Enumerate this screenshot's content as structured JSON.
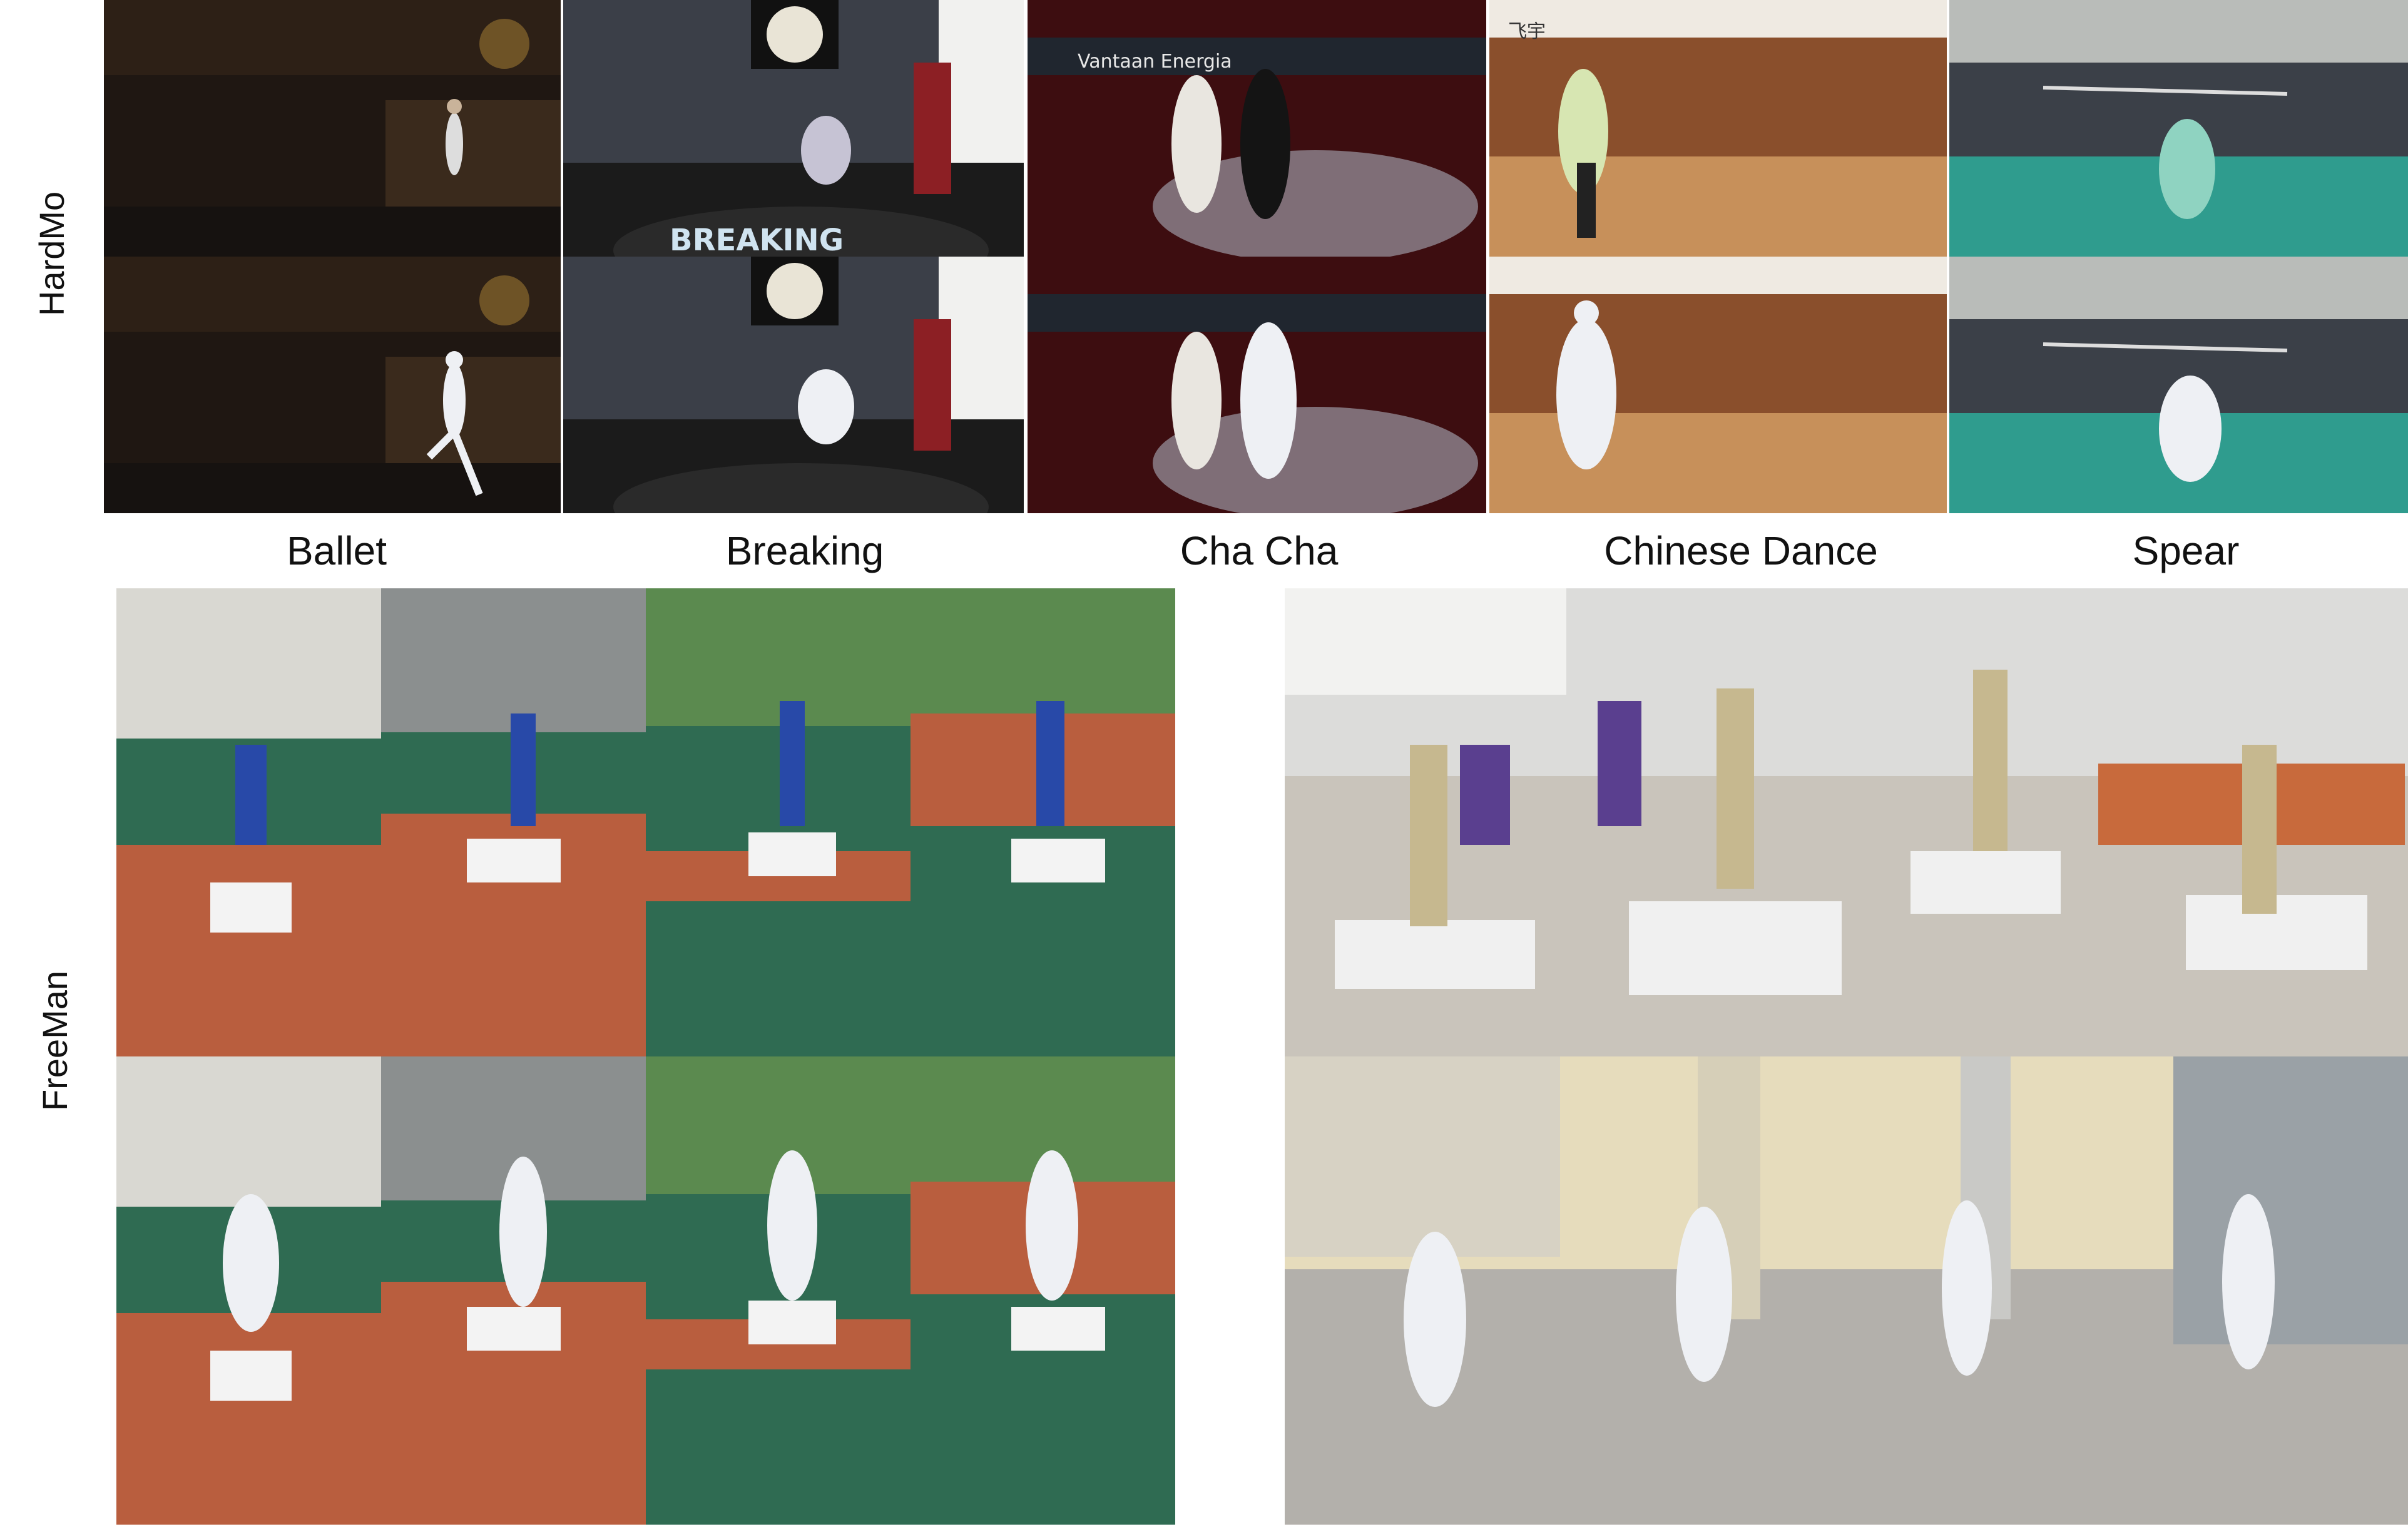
{
  "rows": {
    "hardmo": "HardMo",
    "freeman": "FreeMan"
  },
  "columns": [
    {
      "key": "ballet",
      "label": "Ballet"
    },
    {
      "key": "breaking",
      "label": "Breaking"
    },
    {
      "key": "chacha",
      "label": "Cha Cha"
    },
    {
      "key": "chinese",
      "label": "Chinese Dance"
    },
    {
      "key": "spear",
      "label": "Spear"
    }
  ],
  "scene_text": {
    "breaking_banner": "BREAKING",
    "chacha_sponsor": "Vantaan Energia",
    "chinese_watermark": "飞宇"
  },
  "colors": {
    "ballet_bg": "#1f1712",
    "breaking_floor": "#1b1b1b",
    "chacha_bg": "#3d0d10",
    "chinese_floor": "#c7905a",
    "spear_floor": "#2f9c8e",
    "court_orange": "#b95e3e",
    "court_green": "#2f6b52",
    "hall_floor": "#c9c4bb",
    "mesh_white": "#eef0f4"
  }
}
